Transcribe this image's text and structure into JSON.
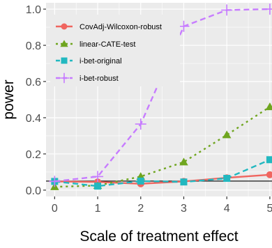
{
  "chart_data": {
    "type": "line",
    "xlabel": "Scale of treatment effect",
    "ylabel": "power",
    "x": [
      0,
      1,
      2,
      3,
      4,
      5
    ],
    "xlim": [
      -0.2,
      5.05
    ],
    "ylim": [
      -0.035,
      1.035
    ],
    "xticks": [
      "0",
      "1",
      "2",
      "3",
      "4",
      "5"
    ],
    "yticks": [
      "0.0",
      "0.2",
      "0.4",
      "0.6",
      "0.8",
      "1.0"
    ],
    "xtick_values": [
      0,
      1,
      2,
      3,
      4,
      5
    ],
    "ytick_values": [
      0,
      0.2,
      0.4,
      0.6,
      0.8,
      1.0
    ],
    "reference_line": 0.05,
    "grid": true,
    "legend_position": "top-left",
    "background": "#ebebeb",
    "series": [
      {
        "name": "CovAdj-Wilcoxon-robust",
        "color": "#f0655f",
        "dash": "solid",
        "marker": "circle",
        "values": [
          0.048,
          0.045,
          0.035,
          0.048,
          0.068,
          0.085
        ]
      },
      {
        "name": "linear-CATE-test",
        "color": "#6fa51f",
        "dash": "dotted",
        "marker": "triangle",
        "values": [
          0.018,
          0.025,
          0.075,
          0.155,
          0.305,
          0.46
        ]
      },
      {
        "name": "i-bet-original",
        "color": "#22b8c0",
        "dash": "dashed",
        "marker": "square",
        "values": [
          0.048,
          0.022,
          0.05,
          0.045,
          0.065,
          0.168
        ]
      },
      {
        "name": "i-bet-robust",
        "color": "#c77cff",
        "dash": "dashed",
        "marker": "plus",
        "values": [
          0.048,
          0.075,
          0.365,
          0.905,
          0.995,
          1.0
        ]
      }
    ]
  }
}
